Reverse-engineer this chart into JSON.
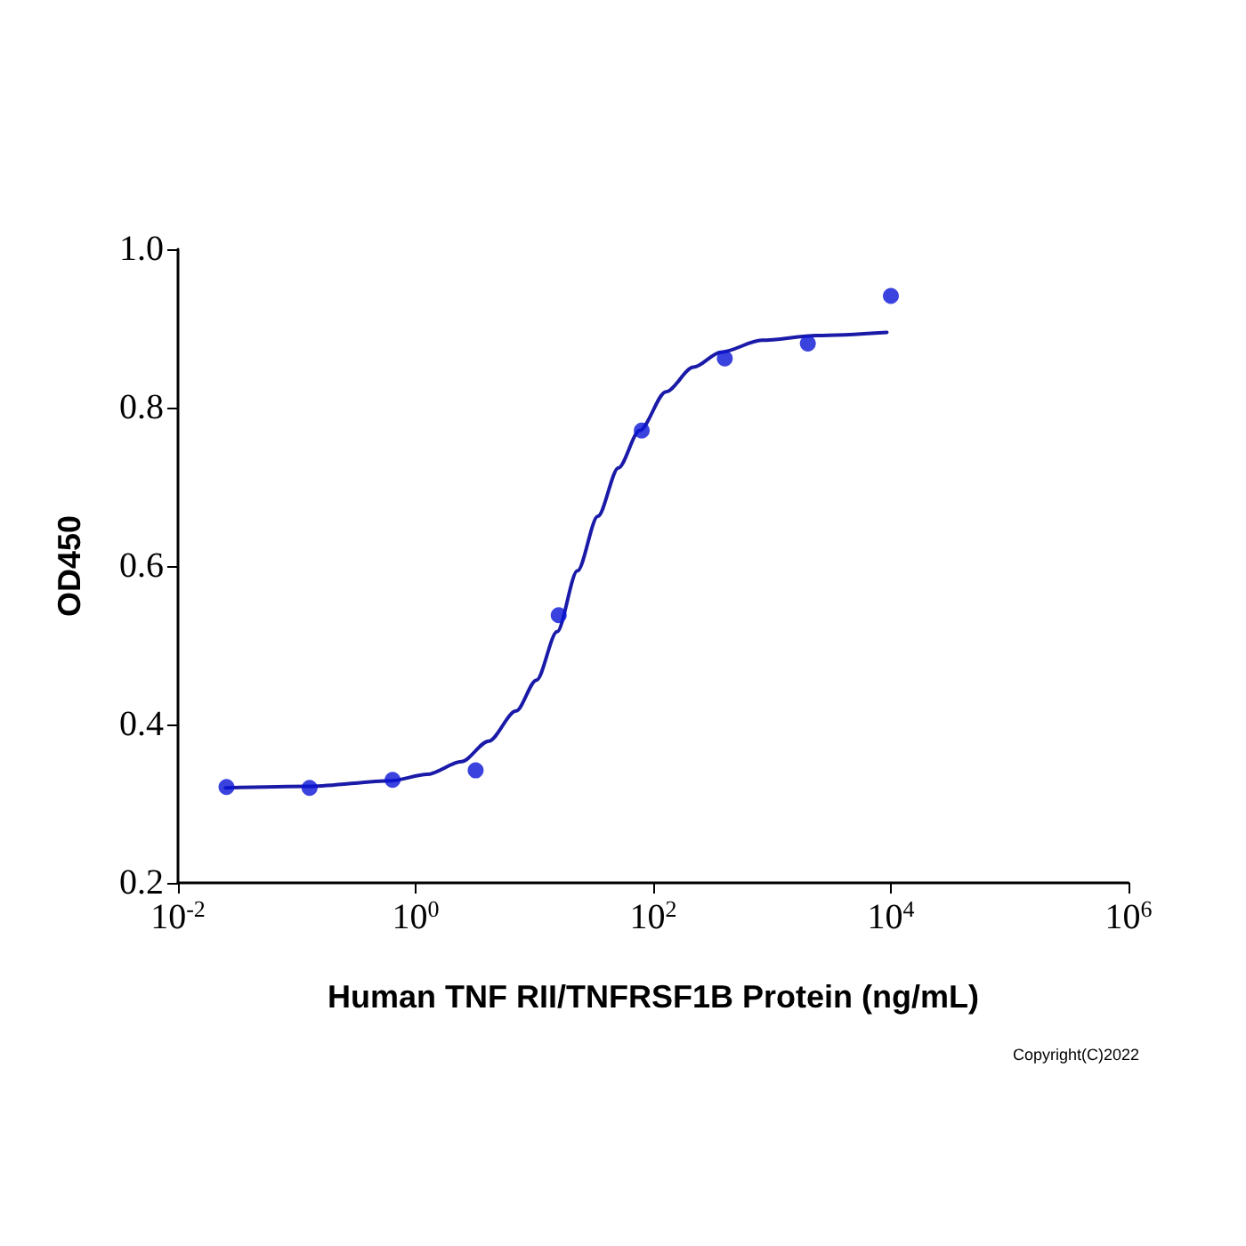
{
  "chart_data": {
    "type": "scatter",
    "xlabel": "Human TNF RII/TNFRSF1B Protein (ng/mL)",
    "ylabel": "OD450",
    "log": "x",
    "grid": false,
    "marker": "circle",
    "xlim": [
      0.01,
      1000000
    ],
    "xticks": [
      {
        "value": 0.01,
        "label": "10$^{-2}$"
      },
      {
        "value": 1,
        "label": "10$^{0}$"
      },
      {
        "value": 100,
        "label": "10$^{2}$"
      },
      {
        "value": 10000,
        "label": "10$^{4}$"
      },
      {
        "value": 1000000,
        "label": "10$^{6}$"
      }
    ],
    "ylim": [
      0.2,
      1.0
    ],
    "yticks": [
      {
        "value": 0.2,
        "label": "0.2"
      },
      {
        "value": 0.4,
        "label": "0.4"
      },
      {
        "value": 0.6,
        "label": "0.6"
      },
      {
        "value": 0.8,
        "label": "0.8"
      },
      {
        "value": 1.0,
        "label": "1.0"
      }
    ],
    "series": [
      {
        "color": "#0a14d6",
        "x": [
          0.0256,
          0.128,
          0.64,
          3.2,
          16,
          80,
          400,
          2000,
          10000
        ],
        "values": [
          0.321,
          0.32,
          0.33,
          0.342,
          0.538,
          0.771,
          0.862,
          0.881,
          0.941
        ]
      },
      {
        "type": "line",
        "marker": "none",
        "line_style": "solid",
        "color": "#1a1aa8",
        "x": [
          0.0251,
          0.132,
          0.621,
          1.25,
          2.43,
          4.12,
          7.0,
          10.4,
          15.5,
          23.0,
          34.2,
          50.9,
          76.7,
          128,
          218,
          371,
          820,
          2366,
          9247
        ],
        "values": [
          0.32,
          0.322,
          0.329,
          0.337,
          0.353,
          0.379,
          0.417,
          0.456,
          0.517,
          0.594,
          0.663,
          0.724,
          0.771,
          0.82,
          0.851,
          0.87,
          0.885,
          0.891,
          0.895
        ]
      }
    ],
    "annotations": [
      "Copyright(C)2022"
    ]
  }
}
